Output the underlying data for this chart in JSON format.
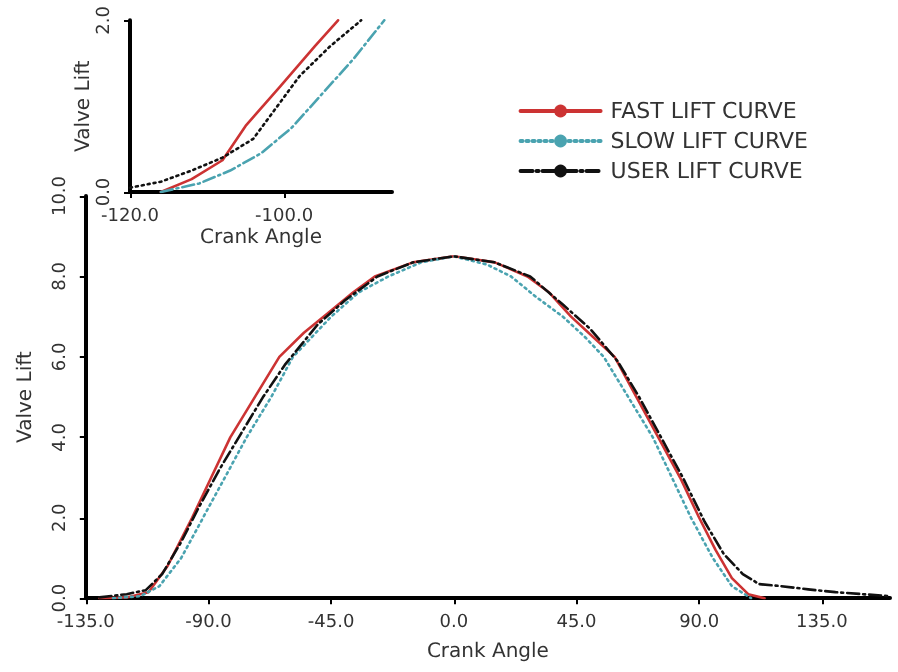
{
  "chart_data": [
    {
      "type": "line",
      "xlabel": "Crank Angle",
      "ylabel": "Valve Lift",
      "xlim": [
        -135,
        160
      ],
      "xticks": [
        {
          "value": -135,
          "label": "-135.0"
        },
        {
          "value": -90,
          "label": "-90.0"
        },
        {
          "value": -45,
          "label": "-45.0"
        },
        {
          "value": 0,
          "label": "0.0"
        },
        {
          "value": 45,
          "label": "45.0"
        },
        {
          "value": 90,
          "label": "90.0"
        },
        {
          "value": 135,
          "label": "135.0"
        }
      ],
      "ylim": [
        0,
        10
      ],
      "yticks": [
        {
          "value": 0,
          "label": "0.0"
        },
        {
          "value": 2,
          "label": "2.0"
        },
        {
          "value": 4,
          "label": "4.0"
        },
        {
          "value": 6,
          "label": "6.0"
        },
        {
          "value": 8,
          "label": "8.0"
        },
        {
          "value": 10,
          "label": "10.0"
        }
      ],
      "grid": false,
      "legend": "top right",
      "marker": "none",
      "series": [
        {
          "name": "FAST LIFT CURVE",
          "color": "#cc3333",
          "line_style": "solid",
          "x": [
            -130,
            -120,
            -112,
            -105,
            -96,
            -89,
            -82,
            -73,
            -64,
            -55,
            -46,
            -37,
            -29,
            -15,
            0,
            15,
            27,
            35,
            43,
            51,
            59,
            67,
            75,
            83,
            90,
            96,
            102,
            108,
            114
          ],
          "values": [
            0,
            0.02,
            0.15,
            0.8,
            2,
            3,
            4,
            5,
            6,
            6.6,
            7.1,
            7.6,
            8,
            8.35,
            8.5,
            8.35,
            8,
            7.6,
            7,
            6.5,
            6,
            5,
            4,
            3,
            2,
            1.2,
            0.5,
            0.1,
            0
          ]
        },
        {
          "name": "SLOW LIFT CURVE",
          "color": "#4aa3b0",
          "line_style": "dotted",
          "x": [
            -125,
            -115,
            -108,
            -100,
            -92,
            -84,
            -76,
            -67,
            -59,
            -45,
            -35,
            -24,
            -12,
            0,
            12,
            21,
            30,
            40,
            48,
            55,
            64,
            73,
            80,
            87,
            95,
            102,
            109
          ],
          "values": [
            0,
            0.05,
            0.3,
            1,
            2,
            3,
            4,
            5,
            6,
            7,
            7.6,
            8,
            8.35,
            8.5,
            8.3,
            8,
            7.5,
            7,
            6.5,
            6,
            5,
            4,
            3,
            2,
            1,
            0.3,
            0
          ]
        },
        {
          "name": "USER LIFT CURVE",
          "color": "#111111",
          "line_style": "dashed",
          "x": [
            -130,
            -120,
            -113,
            -107,
            -100,
            -94,
            -86,
            -78,
            -70,
            -62,
            -50,
            -40,
            -28,
            -15,
            0,
            15,
            28,
            40,
            50,
            60,
            68,
            76,
            84,
            92,
            99,
            106,
            112,
            120,
            130,
            140,
            150,
            160
          ],
          "values": [
            0.02,
            0.1,
            0.2,
            0.6,
            1.4,
            2.2,
            3.2,
            4.1,
            5,
            5.8,
            6.8,
            7.4,
            8,
            8.35,
            8.5,
            8.35,
            8,
            7.3,
            6.7,
            5.9,
            5,
            4,
            3,
            1.9,
            1.1,
            0.6,
            0.35,
            0.3,
            0.22,
            0.15,
            0.1,
            0.05
          ]
        }
      ]
    },
    {
      "type": "line",
      "xlabel": "Crank Angle",
      "ylabel": "Valve Lift",
      "xlim": [
        -120,
        -86
      ],
      "xticks": [
        {
          "value": -120,
          "label": "-120.0"
        },
        {
          "value": -100,
          "label": "-100.0"
        }
      ],
      "ylim": [
        0,
        2
      ],
      "yticks": [
        {
          "value": 0,
          "label": "0.0"
        },
        {
          "value": 2,
          "label": "2.0"
        }
      ],
      "grid": false,
      "legend": false,
      "marker": "none",
      "series": [
        {
          "color": "#cc3333",
          "line_style": "solid",
          "x": [
            -116,
            -112,
            -108,
            -105,
            -100.5,
            -96,
            -93
          ],
          "values": [
            0,
            0.15,
            0.37,
            0.77,
            1.23,
            1.7,
            2
          ]
        },
        {
          "color": "#4aa3b0",
          "line_style": "dashed",
          "x": [
            -116,
            -111,
            -107,
            -103,
            -99,
            -95,
            -91,
            -87
          ],
          "values": [
            0,
            0.1,
            0.25,
            0.45,
            0.75,
            1.15,
            1.55,
            2
          ]
        },
        {
          "color": "#111111",
          "line_style": "dotted",
          "x": [
            -120,
            -116,
            -112,
            -108,
            -104,
            -98,
            -94,
            -90
          ],
          "values": [
            0.05,
            0.12,
            0.25,
            0.4,
            0.62,
            1.35,
            1.7,
            2
          ]
        }
      ]
    }
  ]
}
